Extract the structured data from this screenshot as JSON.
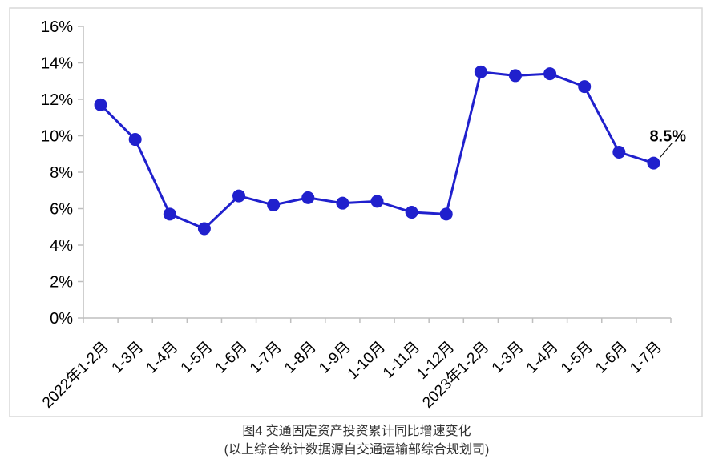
{
  "caption": {
    "title": "图4  交通固定资产投资累计同比增速变化",
    "subtitle": "(以上综合统计数据源自交通运输部综合规划司)"
  },
  "chart_data": {
    "type": "line",
    "title": "图4  交通固定资产投资累计同比增速变化",
    "subtitle": "(以上综合统计数据源自交通运输部综合规划司)",
    "xlabel": "",
    "ylabel": "",
    "categories": [
      "2022年1-2月",
      "1-3月",
      "1-4月",
      "1-5月",
      "1-6月",
      "1-7月",
      "1-8月",
      "1-9月",
      "1-10月",
      "1-11月",
      "1-12月",
      "2023年1-2月",
      "1-3月",
      "1-4月",
      "1-5月",
      "1-6月",
      "1-7月"
    ],
    "values": [
      11.7,
      9.8,
      5.7,
      4.9,
      6.7,
      6.2,
      6.6,
      6.3,
      6.4,
      5.8,
      5.7,
      13.5,
      13.3,
      13.4,
      12.7,
      9.1,
      8.5
    ],
    "ylim": [
      0,
      16
    ],
    "ytick_values": [
      0,
      2,
      4,
      6,
      8,
      10,
      12,
      14,
      16
    ],
    "ytick_labels": [
      "0%",
      "2%",
      "4%",
      "6%",
      "8%",
      "10%",
      "12%",
      "14%",
      "16%"
    ],
    "grid": false,
    "legend": "none",
    "annotation": {
      "text": "8.5%",
      "target_category": "1-7月",
      "target_index": 16,
      "target_value": 8.5
    },
    "colors": {
      "line": "#2020CD",
      "marker": "#2020CD",
      "axis": "#bfbfbf",
      "border": "#d9d9d9",
      "label": "#000000",
      "caption": "#333333"
    }
  }
}
